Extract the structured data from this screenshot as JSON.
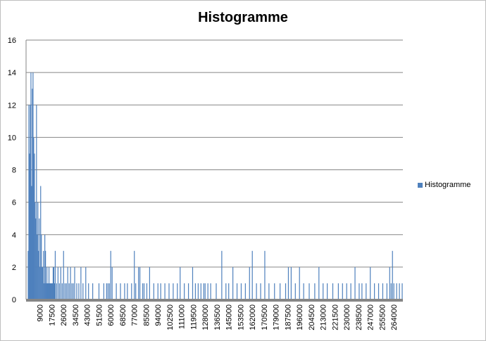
{
  "colors": {
    "bar": "#4f81bd",
    "grid": "#868686",
    "axis": "#868686"
  },
  "chart_data": {
    "type": "bar",
    "title": "Histogramme",
    "xlabel": "",
    "ylabel": "",
    "ylim": [
      0,
      16
    ],
    "grid": true,
    "legend_position": "right",
    "y_ticks": [
      "0",
      "2",
      "4",
      "6",
      "8",
      "10",
      "12",
      "14",
      "16"
    ],
    "x_tick_labels": [
      "9000",
      "17500",
      "26000",
      "34500",
      "43000",
      "51500",
      "60000",
      "68500",
      "77000",
      "85500",
      "94000",
      "102500",
      "111000",
      "119500",
      "128000",
      "136500",
      "145000",
      "153500",
      "162000",
      "170500",
      "179000",
      "187500",
      "196000",
      "204500",
      "213000",
      "221500",
      "230000",
      "238500",
      "247000",
      "255500",
      "264000"
    ],
    "bin_width": 500,
    "bin_start": 500,
    "series": [
      {
        "name": "Histogramme",
        "x": [
          500,
          1000,
          1500,
          2000,
          2500,
          3000,
          3500,
          4000,
          4500,
          5000,
          5500,
          6000,
          6500,
          7000,
          7500,
          8000,
          8500,
          9000,
          9500,
          10000,
          10500,
          11000,
          11500,
          12000,
          12500,
          13000,
          13500,
          14000,
          14500,
          15000,
          15500,
          16000,
          16500,
          17000,
          17500,
          18000,
          18500,
          19000,
          19500,
          20000,
          21000,
          22000,
          23000,
          24000,
          25000,
          26000,
          27000,
          28000,
          29000,
          30000,
          31000,
          32000,
          33000,
          34000,
          35500,
          37000,
          38500,
          40000,
          42000,
          44000,
          47000,
          51500,
          55000,
          57000,
          58000,
          59000,
          60000,
          61000,
          64000,
          67000,
          70000,
          72000,
          75000,
          77000,
          78000,
          80000,
          81000,
          83000,
          84000,
          86000,
          88000,
          91000,
          94000,
          96000,
          99000,
          102000,
          105000,
          108000,
          110000,
          113000,
          116000,
          119000,
          121000,
          123000,
          125000,
          127000,
          128000,
          130000,
          132000,
          136000,
          140000,
          143000,
          145000,
          148000,
          151000,
          154000,
          157000,
          160000,
          162000,
          165000,
          168000,
          171000,
          174000,
          178000,
          182000,
          186000,
          188000,
          190000,
          193000,
          196000,
          199000,
          203000,
          207000,
          210000,
          213000,
          216000,
          220000,
          224000,
          227000,
          230000,
          233000,
          236000,
          239000,
          241000,
          244000,
          247000,
          250000,
          253000,
          256000,
          259000,
          261000,
          262000,
          263000,
          264000,
          266000,
          268000,
          270000
        ],
        "values": [
          3,
          12,
          9,
          12,
          14,
          7,
          13,
          14,
          10,
          9,
          6,
          5,
          12,
          4,
          6,
          3,
          5,
          2,
          7,
          4,
          2,
          2,
          3,
          1,
          4,
          3,
          1,
          2,
          1,
          1,
          2,
          1,
          1,
          1,
          1,
          1,
          2,
          2,
          1,
          3,
          1,
          2,
          1,
          2,
          1,
          3,
          1,
          1,
          2,
          1,
          2,
          1,
          1,
          2,
          1,
          1,
          2,
          1,
          2,
          1,
          1,
          1,
          1,
          1,
          1,
          1,
          3,
          2,
          1,
          1,
          1,
          1,
          1,
          3,
          1,
          2,
          2,
          1,
          1,
          1,
          2,
          1,
          1,
          1,
          1,
          1,
          1,
          1,
          2,
          1,
          1,
          2,
          1,
          1,
          1,
          1,
          1,
          1,
          1,
          1,
          3,
          1,
          1,
          2,
          1,
          1,
          1,
          2,
          3,
          1,
          1,
          3,
          1,
          1,
          1,
          1,
          2,
          2,
          1,
          2,
          1,
          1,
          1,
          2,
          1,
          1,
          1,
          1,
          1,
          1,
          1,
          2,
          1,
          1,
          1,
          2,
          1,
          1,
          1,
          1,
          2,
          1,
          3,
          1,
          1,
          1,
          1
        ]
      }
    ]
  }
}
